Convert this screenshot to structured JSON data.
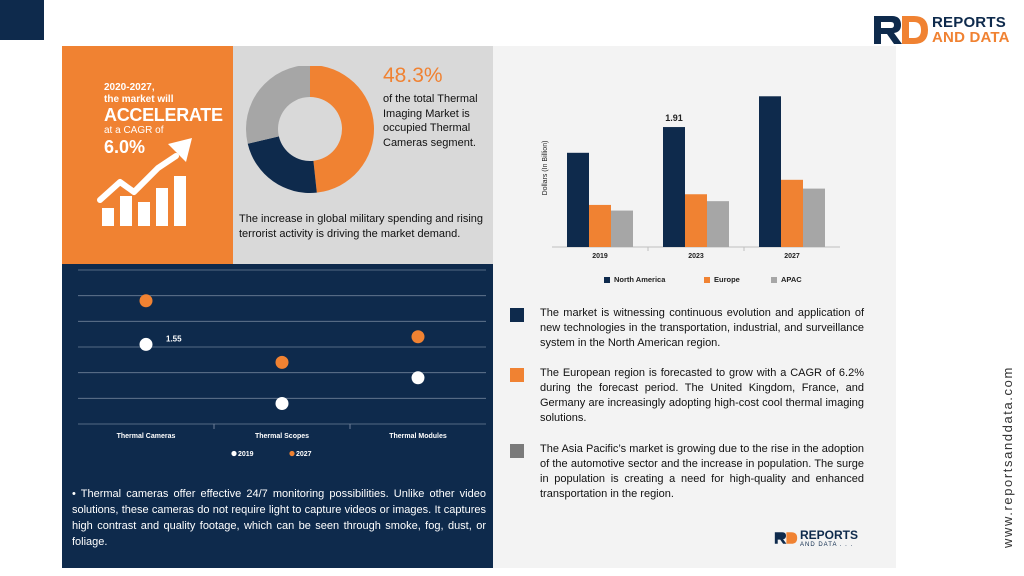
{
  "brand": {
    "name_line1": "REPORTS",
    "name_line2": "AND DATA",
    "footer_line1": "REPORTS",
    "footer_line2": "AND DATA . . .",
    "website": "www.reportsanddata.com",
    "navy": "#0e2a4c",
    "orange": "#f08232",
    "grey": "#a6a6a6"
  },
  "highlight": {
    "line1": "2020-2027,",
    "line2": "the market will",
    "line3": "ACCELERATE",
    "line4": "at a CAGR of",
    "line5": "6.0%",
    "icon": "growth-chart-icon"
  },
  "share": {
    "percent": "48.3%",
    "text": "of the total Thermal Imaging Market is occupied Thermal Cameras segment."
  },
  "driver_text": "The increase in global military spending and rising terrorist activity is driving the market demand.",
  "bullet_text": "Thermal cameras offer effective 24/7 monitoring possibilities. Unlike other video solutions, these cameras do not require light to capture videos or images. It captures high contrast and quality footage, which can be seen through smoke, fog, dust, or foliage.",
  "regions": [
    {
      "color": "#0e2a4c",
      "text": "The market is witnessing continuous evolution and application of new technologies in the transportation, industrial, and surveillance system in the North American region."
    },
    {
      "color": "#f08232",
      "text": "The European region is forecasted to grow with a CAGR of 6.2% during the forecast period. The United Kingdom, France, and Germany are increasingly adopting high-cost cool thermal imaging solutions."
    },
    {
      "color": "#7a7a7a",
      "text": "The Asia Pacific’s market is growing due to the rise in the adoption of the automotive sector and the increase in population. The surge in population is creating a need for high-quality and enhanced transportation in the region."
    }
  ],
  "chart_data": [
    {
      "type": "pie",
      "style": "donut",
      "slices": [
        {
          "value": 48.3,
          "color": "#f08232"
        },
        {
          "value": 23.0,
          "color": "#0e2a4c"
        },
        {
          "value": 28.7,
          "color": "#a6a6a6"
        }
      ]
    },
    {
      "type": "bar",
      "categories": [
        "2019",
        "2023",
        "2027"
      ],
      "ylabel": "Dollars (In Billion)",
      "ylim": [
        0,
        2.5
      ],
      "grid": false,
      "legend": "bottom",
      "series": [
        {
          "name": "North America",
          "color": "#0e2a4c",
          "values": [
            1.5,
            1.91,
            2.4
          ]
        },
        {
          "name": "Europe",
          "color": "#f08232",
          "values": [
            0.67,
            0.84,
            1.07
          ]
        },
        {
          "name": "APAC",
          "color": "#a6a6a6",
          "values": [
            0.58,
            0.73,
            0.93
          ]
        }
      ],
      "data_labels": [
        {
          "series": 0,
          "category": 1,
          "text": "1.91"
        }
      ]
    },
    {
      "type": "scatter",
      "categories": [
        "Thermal Cameras",
        "Thermal Scopes",
        "Thermal Modules"
      ],
      "ylim": [
        0,
        3.0
      ],
      "grid": true,
      "legend": "bottom",
      "series": [
        {
          "name": "2019",
          "color": "#ffffff",
          "values": [
            1.55,
            0.4,
            0.9
          ]
        },
        {
          "name": "2027",
          "color": "#f08232",
          "values": [
            2.4,
            1.2,
            1.7
          ]
        }
      ],
      "data_labels": [
        {
          "series": 0,
          "category": 0,
          "text": "1.55"
        }
      ]
    }
  ]
}
